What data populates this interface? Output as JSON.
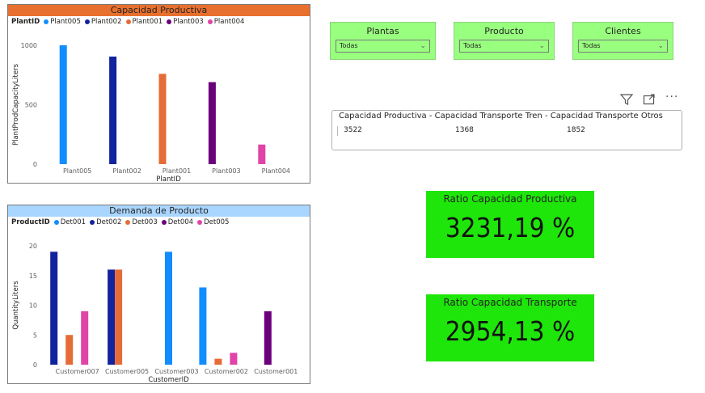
{
  "capacidad_chart": {
    "title": "Capacidad Productiva",
    "title_bg": "#e8702e",
    "legend_title": "PlantID",
    "legend": [
      {
        "name": "Plant005",
        "color": "#118dff"
      },
      {
        "name": "Plant002",
        "color": "#12239e"
      },
      {
        "name": "Plant001",
        "color": "#e66c37"
      },
      {
        "name": "Plant003",
        "color": "#6b007b"
      },
      {
        "name": "Plant004",
        "color": "#e044a7"
      }
    ],
    "ylabel": "PlantProdCapacityLiters",
    "xlabel": "PlantID",
    "yticks": [
      "1000",
      "500",
      "0"
    ]
  },
  "demanda_chart": {
    "title": "Demanda de Producto",
    "title_bg": "#a9d6ff",
    "legend_title": "ProductID",
    "legend": [
      {
        "name": "Det001",
        "color": "#118dff"
      },
      {
        "name": "Det002",
        "color": "#12239e"
      },
      {
        "name": "Det003",
        "color": "#e66c37"
      },
      {
        "name": "Det004",
        "color": "#6b007b"
      },
      {
        "name": "Det005",
        "color": "#e044a7"
      }
    ],
    "ylabel": "QuantityLiters",
    "xlabel": "CustomerID",
    "yticks": [
      "20",
      "15",
      "10",
      "5",
      "0"
    ]
  },
  "chart_data": [
    {
      "type": "bar",
      "title": "Capacidad Productiva",
      "xlabel": "PlantID",
      "ylabel": "PlantProdCapacityLiters",
      "categories": [
        "Plant005",
        "Plant002",
        "Plant001",
        "Plant003",
        "Plant004"
      ],
      "values": [
        1000,
        905,
        760,
        690,
        165
      ],
      "colors": [
        "#118dff",
        "#12239e",
        "#e66c37",
        "#6b007b",
        "#e044a7"
      ],
      "ylim": [
        0,
        1000
      ],
      "grid": false,
      "legend": "top-left"
    },
    {
      "type": "bar",
      "title": "Demanda de Producto",
      "xlabel": "CustomerID",
      "ylabel": "QuantityLiters",
      "categories": [
        "Customer007",
        "Customer005",
        "Customer003",
        "Customer002",
        "Customer001"
      ],
      "series": [
        {
          "name": "Det001",
          "color": "#118dff",
          "values": [
            null,
            null,
            19,
            13,
            null
          ]
        },
        {
          "name": "Det002",
          "color": "#12239e",
          "values": [
            19,
            16,
            null,
            null,
            null
          ]
        },
        {
          "name": "Det003",
          "color": "#e66c37",
          "values": [
            5,
            16,
            null,
            1,
            null
          ]
        },
        {
          "name": "Det004",
          "color": "#6b007b",
          "values": [
            null,
            null,
            null,
            null,
            9
          ]
        },
        {
          "name": "Det005",
          "color": "#e044a7",
          "values": [
            9,
            null,
            null,
            2,
            null
          ]
        }
      ],
      "ylim": [
        0,
        20
      ],
      "grid": false,
      "legend": "top-left"
    }
  ],
  "slicers": [
    {
      "title": "Plantas",
      "value": "Todas"
    },
    {
      "title": "Producto",
      "value": "Todas"
    },
    {
      "title": "Clientes",
      "value": "Todas"
    }
  ],
  "table": {
    "header": "Capacidad Productiva - Capacidad Transporte Tren - Capacidad Transporte Otros",
    "values": [
      "3522",
      "1368",
      "1852"
    ],
    "icons": [
      "filter-icon",
      "focus-mode-icon",
      "more-options-icon"
    ]
  },
  "kpis": [
    {
      "title": "Ratio Capacidad Productiva",
      "value": "3231,19 %"
    },
    {
      "title": "Ratio Capacidad Transporte",
      "value": "2954,13 %"
    }
  ]
}
